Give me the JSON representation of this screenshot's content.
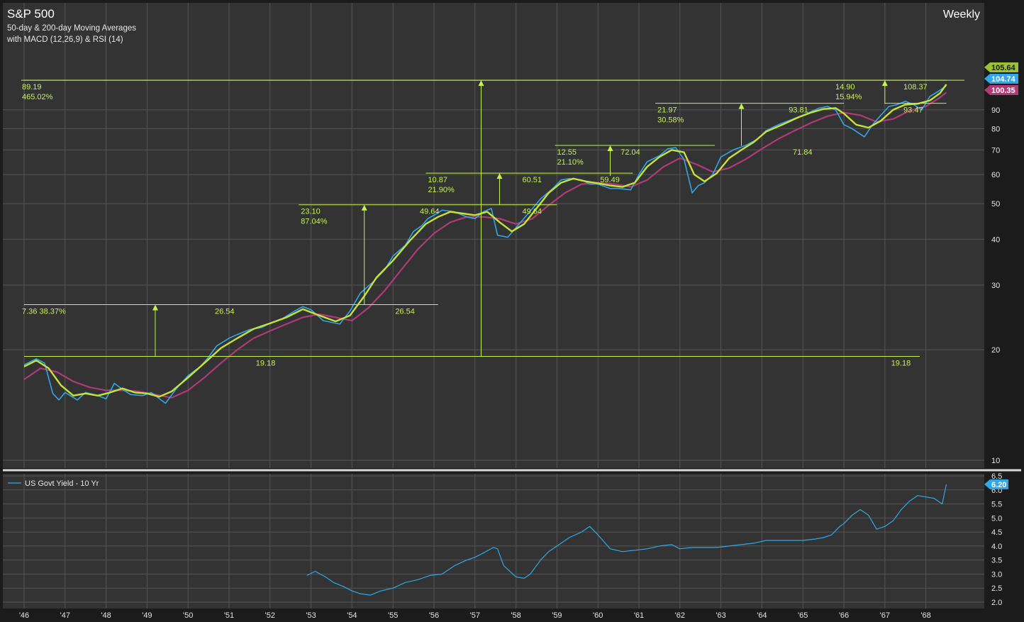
{
  "header": {
    "title": "S&P 500",
    "subtitle1": "50-day & 200-day Moving Averages",
    "subtitle2": "with MACD (12,26,9) & RSI (14)",
    "frequency": "Weekly"
  },
  "colors": {
    "background": "#333333",
    "frame": "#1b1b1b",
    "grid": "#545454",
    "price": "#2ea8e8",
    "ma50": "#c6e23a",
    "ma200": "#b03a78",
    "annotation": "#c6f24e",
    "axis_text": "#e4e4e4",
    "yield": "#2ea8e8"
  },
  "chart_data": [
    {
      "type": "line",
      "y_scale": "log",
      "ylim": [
        10,
        118
      ],
      "y_ticks": [
        10,
        20,
        30,
        40,
        50,
        60,
        70,
        80,
        90
      ],
      "x_tick_labels": [
        "'46",
        "'47",
        "'48",
        "'49",
        "'50",
        "'51",
        "'52",
        "'53",
        "'54",
        "'55",
        "'56",
        "'57",
        "'58",
        "'59",
        "'60",
        "'61",
        "'62",
        "'63",
        "'64",
        "'65",
        "'66",
        "'67",
        "'68"
      ],
      "xlim": [
        1945.9,
        1968.7
      ],
      "last_values": [
        {
          "label": "105.64",
          "color": "#9ac233"
        },
        {
          "label": "104.74",
          "color": "#2ea8e8"
        },
        {
          "label": "100.35",
          "color": "#b03a78"
        }
      ],
      "series": [
        {
          "role": "price",
          "x": [
            1946.0,
            1946.3,
            1946.5,
            1946.7,
            1946.85,
            1947.0,
            1947.3,
            1947.5,
            1947.8,
            1948.0,
            1948.2,
            1948.4,
            1948.6,
            1948.9,
            1949.1,
            1949.45,
            1949.7,
            1950.0,
            1950.3,
            1950.5,
            1950.7,
            1951.0,
            1951.2,
            1951.5,
            1951.8,
            1952.0,
            1952.3,
            1952.6,
            1952.8,
            1953.0,
            1953.3,
            1953.7,
            1953.95,
            1954.2,
            1954.5,
            1954.8,
            1955.0,
            1955.3,
            1955.5,
            1955.7,
            1955.85,
            1956.0,
            1956.2,
            1956.5,
            1956.8,
            1957.0,
            1957.2,
            1957.4,
            1957.55,
            1957.8,
            1958.0,
            1958.3,
            1958.6,
            1958.9,
            1959.1,
            1959.3,
            1959.6,
            1959.8,
            1960.0,
            1960.3,
            1960.5,
            1960.8,
            1961.0,
            1961.2,
            1961.5,
            1961.7,
            1961.9,
            1962.1,
            1962.3,
            1962.45,
            1962.6,
            1962.8,
            1963.0,
            1963.3,
            1963.6,
            1963.9,
            1964.1,
            1964.4,
            1964.7,
            1965.0,
            1965.2,
            1965.4,
            1965.6,
            1965.8,
            1966.0,
            1966.2,
            1966.5,
            1966.7,
            1966.9,
            1967.1,
            1967.3,
            1967.5,
            1967.7,
            1967.9,
            1968.1,
            1968.3,
            1968.5
          ],
          "y": [
            18.2,
            18.9,
            18.4,
            15.2,
            14.6,
            15.3,
            14.6,
            15.3,
            15.0,
            14.7,
            16.2,
            15.6,
            15.1,
            15.0,
            15.3,
            14.3,
            15.6,
            17.0,
            18.0,
            19.1,
            20.5,
            21.5,
            22.0,
            22.7,
            23.0,
            23.6,
            24.3,
            25.5,
            26.2,
            25.7,
            24.0,
            23.5,
            25.5,
            28.5,
            30.5,
            33.0,
            36.0,
            38.5,
            42.0,
            43.5,
            45.5,
            46.5,
            48.0,
            47.5,
            46.0,
            45.5,
            47.5,
            48.5,
            41.0,
            40.5,
            43.0,
            47.0,
            51.5,
            55.0,
            58.0,
            58.5,
            58.0,
            56.5,
            56.5,
            55.0,
            55.0,
            54.5,
            60.0,
            65.0,
            67.5,
            70.5,
            71.0,
            66.0,
            53.5,
            56.0,
            57.0,
            60.0,
            67.0,
            70.0,
            72.0,
            75.0,
            79.0,
            82.0,
            84.5,
            87.0,
            89.0,
            91.0,
            92.0,
            90.0,
            82.0,
            80.0,
            76.0,
            82.0,
            87.0,
            92.0,
            93.0,
            95.0,
            93.0,
            90.0,
            98.0,
            101.0,
            104.74
          ]
        },
        {
          "role": "ma50",
          "x": [
            1946.0,
            1946.3,
            1946.6,
            1946.9,
            1947.2,
            1947.5,
            1947.8,
            1948.1,
            1948.4,
            1948.7,
            1949.0,
            1949.3,
            1949.6,
            1950.0,
            1950.4,
            1950.8,
            1951.2,
            1951.6,
            1952.0,
            1952.4,
            1952.8,
            1953.2,
            1953.6,
            1953.95,
            1954.3,
            1954.6,
            1955.0,
            1955.4,
            1955.8,
            1956.1,
            1956.4,
            1956.7,
            1957.0,
            1957.3,
            1957.6,
            1957.9,
            1958.2,
            1958.5,
            1958.8,
            1959.1,
            1959.4,
            1959.7,
            1960.0,
            1960.3,
            1960.6,
            1960.9,
            1961.2,
            1961.5,
            1961.8,
            1962.1,
            1962.35,
            1962.6,
            1962.9,
            1963.2,
            1963.5,
            1963.8,
            1964.1,
            1964.5,
            1964.9,
            1965.2,
            1965.5,
            1965.8,
            1966.0,
            1966.3,
            1966.6,
            1966.9,
            1967.2,
            1967.5,
            1967.8,
            1968.1,
            1968.35,
            1968.5
          ],
          "y": [
            18.0,
            18.7,
            17.8,
            16.0,
            15.0,
            15.2,
            15.0,
            15.3,
            15.7,
            15.3,
            15.2,
            14.9,
            15.4,
            16.8,
            18.4,
            20.2,
            21.5,
            22.8,
            23.6,
            24.5,
            25.8,
            24.8,
            23.9,
            24.8,
            28.0,
            31.5,
            35.0,
            39.5,
            44.0,
            46.0,
            47.5,
            47.0,
            46.5,
            47.5,
            44.5,
            42.0,
            44.0,
            48.5,
            53.5,
            57.0,
            58.5,
            57.5,
            56.8,
            56.0,
            55.5,
            57.0,
            63.0,
            67.0,
            70.0,
            69.0,
            60.0,
            57.5,
            60.5,
            66.5,
            70.0,
            73.5,
            78.5,
            82.0,
            86.0,
            88.5,
            90.5,
            91.0,
            88.0,
            82.0,
            80.5,
            84.0,
            90.0,
            93.0,
            93.5,
            95.5,
            100.0,
            105.64
          ]
        },
        {
          "role": "ma200",
          "x": [
            1946.0,
            1946.4,
            1946.8,
            1947.2,
            1947.6,
            1948.0,
            1948.4,
            1948.8,
            1949.2,
            1949.6,
            1950.0,
            1950.4,
            1950.8,
            1951.2,
            1951.6,
            1952.0,
            1952.4,
            1952.8,
            1953.2,
            1953.6,
            1954.0,
            1954.4,
            1954.8,
            1955.2,
            1955.6,
            1956.0,
            1956.4,
            1956.8,
            1957.2,
            1957.6,
            1958.0,
            1958.4,
            1958.8,
            1959.2,
            1959.6,
            1960.0,
            1960.4,
            1960.8,
            1961.2,
            1961.6,
            1962.0,
            1962.4,
            1962.8,
            1963.2,
            1963.6,
            1964.0,
            1964.4,
            1964.8,
            1965.2,
            1965.6,
            1966.0,
            1966.4,
            1966.8,
            1967.2,
            1967.6,
            1968.0,
            1968.3,
            1968.5
          ],
          "y": [
            16.6,
            17.8,
            17.4,
            16.4,
            15.8,
            15.5,
            15.5,
            15.4,
            15.1,
            14.8,
            15.5,
            16.8,
            18.4,
            20.0,
            21.5,
            22.5,
            23.5,
            24.5,
            25.0,
            24.5,
            24.0,
            26.0,
            29.0,
            33.0,
            37.5,
            41.5,
            44.5,
            46.0,
            46.0,
            45.5,
            44.0,
            45.5,
            49.5,
            53.5,
            56.5,
            57.0,
            56.5,
            55.5,
            58.0,
            63.0,
            66.5,
            64.0,
            61.0,
            62.5,
            66.0,
            70.5,
            75.0,
            79.0,
            83.0,
            86.5,
            88.5,
            87.0,
            83.5,
            85.0,
            89.5,
            92.0,
            96.5,
            100.35
          ]
        }
      ],
      "annotations": [
        {
          "id": "sr-19-18-top",
          "from": 1946.0,
          "to": 1967.85,
          "level": 19.18,
          "labels": [
            {
              "x": 1952.0,
              "text": "19.18"
            },
            {
              "x": 1967.5,
              "text": "19.18"
            }
          ]
        },
        {
          "id": "sr-26-54",
          "from": 1946.0,
          "to": 1956.1,
          "level": 26.54,
          "labels": [
            {
              "x": 1951.0,
              "text": "26.54"
            },
            {
              "x": 1955.4,
              "text": "26.54"
            }
          ],
          "gain_text": "7.36 38.37%",
          "arrow_x": 1949.2
        },
        {
          "id": "sr-49-64",
          "from": 1952.7,
          "to": 1959.0,
          "level": 49.64,
          "labels": [
            {
              "x": 1956.0,
              "text": "49.64"
            },
            {
              "x": 1958.5,
              "text": "49.64"
            }
          ],
          "gain_text": [
            "23.10",
            "87.04%"
          ],
          "arrow_x": 1954.3
        },
        {
          "id": "sr-60-51",
          "from": 1955.8,
          "to": 1960.85,
          "level": 60.51,
          "labels": [
            {
              "x": 1958.5,
              "text": "60.51"
            },
            {
              "x": 1960.4,
              "text": "59.49"
            }
          ],
          "gain_text": [
            "10.87",
            "21.90%"
          ],
          "arrow_x": 1957.6
        },
        {
          "id": "sr-72-04",
          "from": 1958.95,
          "to": 1962.85,
          "level": 72.04,
          "labels": [
            {
              "x": 1960.9,
              "text": "72.04"
            },
            {
              "x": 1965.1,
              "text": "71.84"
            }
          ],
          "gain_text": [
            "12.55",
            "21.10%"
          ],
          "arrow_x": 1960.3
        },
        {
          "id": "sr-93-81",
          "from": 1961.4,
          "to": 1966.0,
          "level": 93.81,
          "labels": [
            {
              "x": 1965.0,
              "text": "93.81"
            },
            {
              "x": 1967.8,
              "text": "93.47"
            }
          ],
          "gain_text": [
            "21.97",
            "30.58%"
          ],
          "arrow_x": 1963.5
        },
        {
          "id": "sr-108-37",
          "from": 1946.0,
          "to": 1968.5,
          "level": 108.37,
          "labels": [
            {
              "x": 1967.8,
              "text": "108.37"
            }
          ],
          "gain_text": [
            "89.19",
            "465.02%"
          ],
          "arrow_x": 1957.15
        },
        {
          "id": "sr-15-94",
          "from": 1967.0,
          "to": 1968.5,
          "level": 93.81,
          "labels": [],
          "gain_text": [
            "14.90",
            "15.94%"
          ],
          "arrow_x": 1967.0
        }
      ]
    },
    {
      "type": "line",
      "ylim": [
        2.0,
        6.5
      ],
      "y_ticks": [
        "2.0",
        "2.5",
        "3.0",
        "3.5",
        "4.0",
        "4.5",
        "5.0",
        "5.5",
        "6.0",
        "6.5"
      ],
      "legend": "US Govt Yield - 10 Yr",
      "last_value": "6.20",
      "series": [
        {
          "role": "yield",
          "x": [
            1952.9,
            1953.1,
            1953.35,
            1953.55,
            1953.8,
            1954.0,
            1954.2,
            1954.45,
            1954.7,
            1955.0,
            1955.3,
            1955.6,
            1955.9,
            1956.2,
            1956.5,
            1956.8,
            1957.0,
            1957.2,
            1957.45,
            1957.55,
            1957.7,
            1958.0,
            1958.2,
            1958.35,
            1958.6,
            1958.8,
            1959.0,
            1959.3,
            1959.6,
            1959.8,
            1960.0,
            1960.3,
            1960.6,
            1960.9,
            1961.2,
            1961.5,
            1961.8,
            1962.0,
            1962.3,
            1962.6,
            1962.9,
            1963.2,
            1963.5,
            1963.8,
            1964.1,
            1964.4,
            1964.7,
            1965.0,
            1965.3,
            1965.5,
            1965.7,
            1965.9,
            1966.0,
            1966.2,
            1966.4,
            1966.6,
            1966.8,
            1967.0,
            1967.2,
            1967.4,
            1967.6,
            1967.8,
            1968.0,
            1968.2,
            1968.4,
            1968.5
          ],
          "y": [
            2.95,
            3.1,
            2.9,
            2.7,
            2.55,
            2.4,
            2.3,
            2.25,
            2.4,
            2.5,
            2.7,
            2.8,
            2.95,
            3.0,
            3.3,
            3.5,
            3.6,
            3.75,
            3.95,
            3.9,
            3.3,
            2.9,
            2.85,
            3.0,
            3.5,
            3.8,
            4.0,
            4.3,
            4.5,
            4.7,
            4.4,
            3.9,
            3.8,
            3.85,
            3.9,
            4.0,
            4.05,
            3.9,
            3.95,
            3.95,
            3.95,
            4.0,
            4.05,
            4.1,
            4.2,
            4.2,
            4.2,
            4.2,
            4.25,
            4.3,
            4.4,
            4.7,
            4.8,
            5.1,
            5.3,
            5.1,
            4.6,
            4.7,
            4.9,
            5.3,
            5.6,
            5.8,
            5.75,
            5.7,
            5.5,
            6.2
          ]
        }
      ]
    }
  ]
}
